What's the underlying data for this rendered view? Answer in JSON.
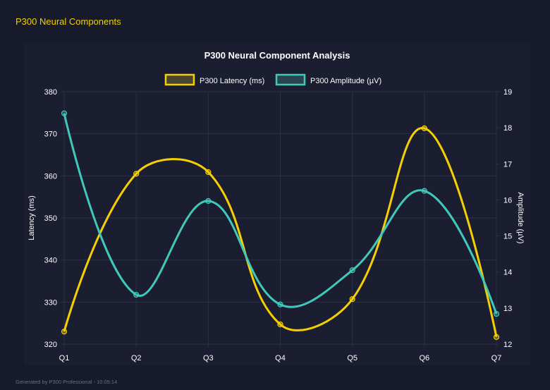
{
  "header": {
    "title": "P300 Neural Components"
  },
  "footer": {
    "text": "Generated by P300 Professional - 10:05:14"
  },
  "chart_data": {
    "type": "line",
    "title": "P300 Neural Component Analysis",
    "categories": [
      "Q1",
      "Q2",
      "Q3",
      "Q4",
      "Q5",
      "Q6",
      "Q7"
    ],
    "series": [
      {
        "name": "P300 Latency (ms)",
        "axis": "left",
        "color": "#f5d000",
        "values": [
          323.0,
          360.5,
          360.9,
          324.7,
          330.7,
          371.3,
          321.7
        ]
      },
      {
        "name": "P300 Amplitude (µV)",
        "axis": "right",
        "color": "#40c9bb",
        "values": [
          18.4,
          13.37,
          15.97,
          13.1,
          14.05,
          16.25,
          12.84
        ]
      }
    ],
    "ylabel": "Latency (ms)",
    "y2label": "Amplitude (µV)",
    "ylim": [
      320,
      380
    ],
    "yticks": [
      "320",
      "330",
      "340",
      "350",
      "360",
      "370",
      "380"
    ],
    "y2lim": [
      12,
      19
    ],
    "y2ticks": [
      "12",
      "13",
      "14",
      "15",
      "16",
      "17",
      "18",
      "19"
    ],
    "legend": "top",
    "grid": true
  }
}
